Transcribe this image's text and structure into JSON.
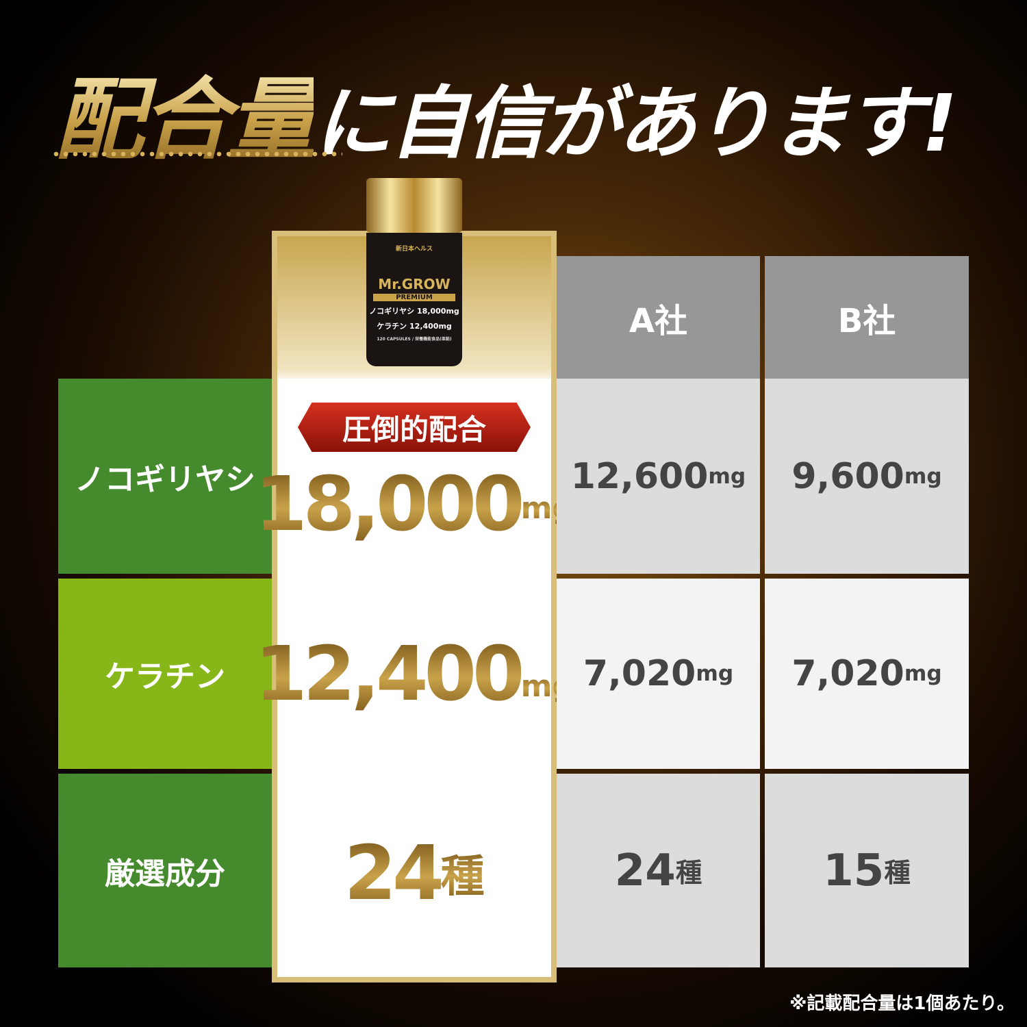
{
  "title": {
    "gold": "配合量",
    "white": "に自信があります!"
  },
  "product": {
    "maker": "新日本ヘルス",
    "brand": "Mr.GROW",
    "edition": "PREMIUM",
    "dose1": "ノコギリヤシ 18,000mg",
    "dose2": "ケラチン 12,400mg",
    "footer": "120 CAPSULES / 栄養機能食品(亜鉛)"
  },
  "columns": {
    "a": "A社",
    "b": "B社"
  },
  "badge": "圧倒的配合",
  "rows": [
    {
      "label": "ノコギリヤシ",
      "color": "#468a2e",
      "ours": "18,000",
      "ours_unit": "mg",
      "a": "12,600",
      "a_unit": "mg",
      "b": "9,600",
      "b_unit": "mg"
    },
    {
      "label": "ケラチン",
      "color": "#86b617",
      "ours": "12,400",
      "ours_unit": "mg",
      "a": "7,020",
      "a_unit": "mg",
      "b": "7,020",
      "b_unit": "mg"
    },
    {
      "label": "厳選成分",
      "color": "#468a2e",
      "ours": "24",
      "ours_unit": "種",
      "a": "24",
      "a_unit": "種",
      "b": "15",
      "b_unit": "種"
    }
  ],
  "note": "※記載配合量は1個あたり。"
}
